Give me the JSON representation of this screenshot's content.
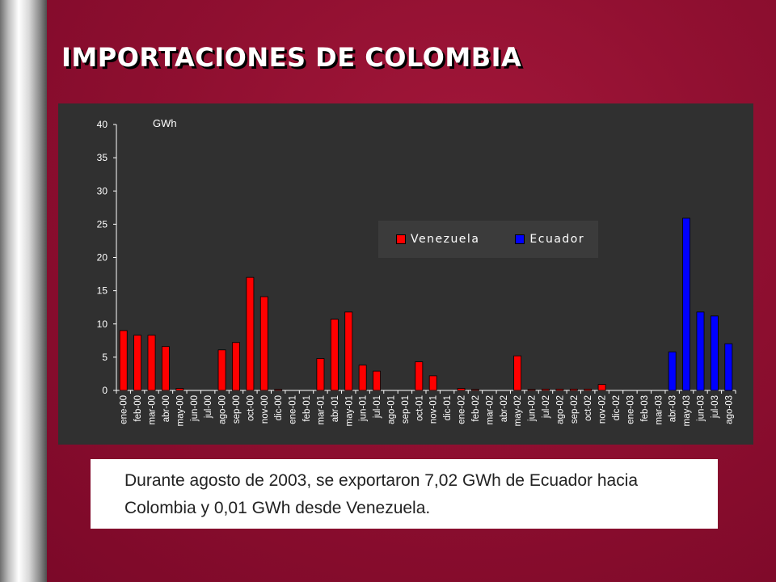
{
  "slide": {
    "title": "IMPORTACIONES DE COLOMBIA",
    "caption": "Durante agosto de 2003,  se exportaron 7,02 GWh de Ecuador hacia Colombia y 0,01 GWh desde Venezuela."
  },
  "chart_data": {
    "type": "bar",
    "title": "",
    "unit_label": "GWh",
    "ylim": [
      0,
      40
    ],
    "yticks": [
      0,
      5,
      10,
      15,
      20,
      25,
      30,
      35,
      40
    ],
    "legend_position": "top-right",
    "grid": false,
    "categories": [
      "ene-00",
      "feb-00",
      "mar-00",
      "abr-00",
      "may-00",
      "jun-00",
      "jul-00",
      "ago-00",
      "sep-00",
      "oct-00",
      "nov-00",
      "dic-00",
      "ene-01",
      "feb-01",
      "mar-01",
      "abr-01",
      "may-01",
      "jun-01",
      "jul-01",
      "ago-01",
      "sep-01",
      "oct-01",
      "nov-01",
      "dic-01",
      "ene-02",
      "feb-02",
      "mar-02",
      "abr-02",
      "may-02",
      "jun-02",
      "jul-02",
      "ago-02",
      "sep-02",
      "oct-02",
      "nov-02",
      "dic-02",
      "ene-03",
      "feb-03",
      "mar-03",
      "abr-03",
      "may-03",
      "jun-03",
      "jul-03",
      "ago-03"
    ],
    "series": [
      {
        "name": "Venezuela",
        "color": "#ff0000",
        "values": [
          9.0,
          8.3,
          8.3,
          6.6,
          0.3,
          0,
          0,
          6.1,
          7.2,
          17.0,
          14.1,
          0.1,
          0,
          0,
          4.8,
          10.7,
          11.8,
          3.8,
          2.9,
          0,
          0,
          4.3,
          2.2,
          0,
          0.3,
          0.1,
          0,
          0,
          5.2,
          0.1,
          0.2,
          0.2,
          0.2,
          0.2,
          0.9,
          0,
          0,
          0,
          0,
          0,
          0,
          0,
          0,
          0.01
        ]
      },
      {
        "name": "Ecuador",
        "color": "#0000ff",
        "values": [
          0,
          0,
          0,
          0,
          0,
          0,
          0,
          0,
          0,
          0,
          0,
          0,
          0,
          0,
          0,
          0,
          0,
          0,
          0,
          0,
          0,
          0,
          0,
          0,
          0,
          0,
          0,
          0,
          0,
          0,
          0,
          0,
          0,
          0,
          0,
          0,
          0,
          0,
          0,
          5.8,
          25.9,
          11.8,
          11.2,
          7.02
        ]
      }
    ]
  }
}
